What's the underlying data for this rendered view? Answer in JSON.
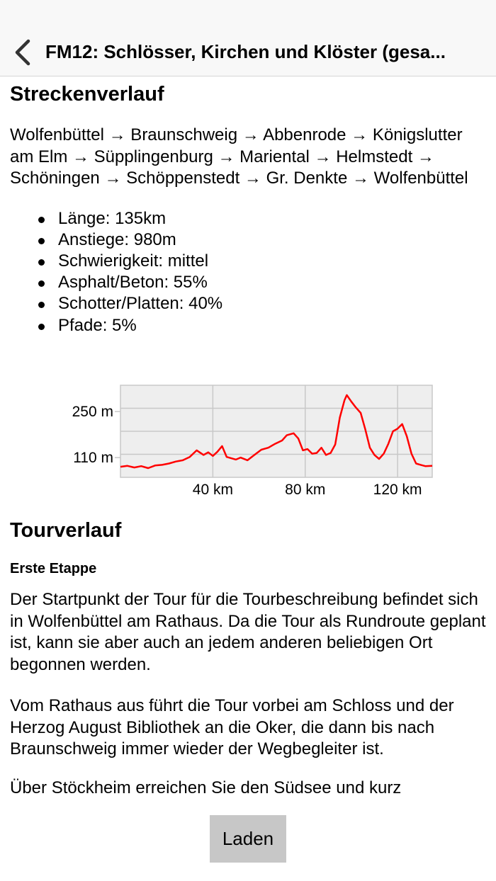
{
  "nav": {
    "back_icon": "chevron-left-icon",
    "title": "FM12: Schlösser, Kirchen und Klöster (gesa..."
  },
  "route_section": {
    "heading": "Streckenverlauf",
    "route_text": "Wolfenbüttel → Braunschweig → Abbenrode → Königslutter am Elm → Süpplingenburg → Mariental → Helmstedt → Schöningen → Schöppenstedt → Gr. Denkte → Wolfenbüttel",
    "facts": [
      "Länge: 135km",
      "Anstiege: 980m",
      "Schwierigkeit: mittel",
      "Asphalt/Beton: 55%",
      "Schotter/Platten: 40%",
      "Pfade: 5%"
    ]
  },
  "chart_data": {
    "type": "line",
    "x_unit": "km",
    "xlim": [
      0,
      135
    ],
    "ylim": [
      50,
      330
    ],
    "x_ticks": [
      40,
      80,
      120
    ],
    "x_tick_labels": [
      "40 km",
      "80 km",
      "120 km"
    ],
    "y_ticks": [
      110,
      250
    ],
    "y_tick_labels": [
      "110 m",
      "250 m"
    ],
    "grid": true,
    "line_color": "#ff0000",
    "series": [
      {
        "x": [
          0,
          3,
          6,
          9,
          12,
          15,
          18,
          21,
          24,
          27,
          30,
          33,
          36,
          38,
          40,
          42,
          44,
          46,
          48,
          50,
          52,
          55,
          58,
          61,
          64,
          67,
          70,
          72,
          74,
          75,
          77,
          79,
          81,
          83,
          85,
          87,
          89,
          91,
          93,
          95,
          97,
          98,
          100,
          102,
          104,
          106,
          108,
          110,
          112,
          114,
          116,
          118,
          120,
          122,
          124,
          126,
          128,
          130,
          132,
          135
        ],
        "y": [
          82,
          85,
          80,
          84,
          78,
          86,
          88,
          92,
          98,
          102,
          112,
          132,
          118,
          126,
          115,
          128,
          145,
          112,
          108,
          104,
          110,
          102,
          118,
          134,
          140,
          152,
          162,
          178,
          182,
          184,
          168,
          132,
          136,
          122,
          124,
          140,
          118,
          124,
          150,
          232,
          284,
          300,
          280,
          262,
          246,
          196,
          140,
          118,
          106,
          122,
          152,
          190,
          198,
          212,
          175,
          122,
          92,
          88,
          84,
          85
        ]
      }
    ]
  },
  "tour_section": {
    "heading": "Tourverlauf",
    "stage_heading": "Erste Etappe",
    "paragraphs": [
      "Der Startpunkt der Tour für die Tourbeschreibung befindet sich in Wolfenbüttel am Rathaus. Da die Tour als Rundroute geplant ist, kann sie aber auch an jedem anderen beliebigen Ort begonnen werden.",
      "Vom Rathaus aus führt die Tour vorbei am Schloss und der Herzog August Bibliothek an die Oker, die dann bis nach Braunschweig immer wieder der Wegbegleiter ist.",
      "Über Stöckheim erreichen Sie den Südsee und kurz"
    ]
  },
  "load_button": {
    "label": "Laden"
  }
}
